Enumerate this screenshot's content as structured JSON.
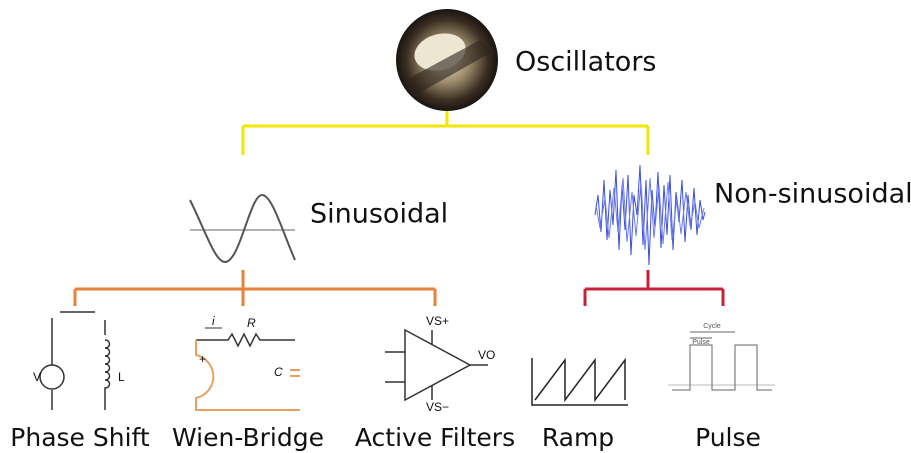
{
  "root": {
    "label": "Oscillators"
  },
  "branches": [
    {
      "label": "Sinusoidal",
      "children": [
        {
          "label": "Phase Shift",
          "symbols": [
            "V",
            "L"
          ]
        },
        {
          "label": "Wien-Bridge",
          "symbols": [
            "i",
            "R",
            "C"
          ]
        },
        {
          "label": "Active Filters",
          "symbols": [
            "VS+",
            "VS−",
            "VO"
          ]
        }
      ]
    },
    {
      "label": "Non-sinusoidal",
      "children": [
        {
          "label": "Ramp"
        },
        {
          "label": "Pulse",
          "symbols": [
            "Cycle",
            "Pulse"
          ]
        }
      ]
    }
  ]
}
